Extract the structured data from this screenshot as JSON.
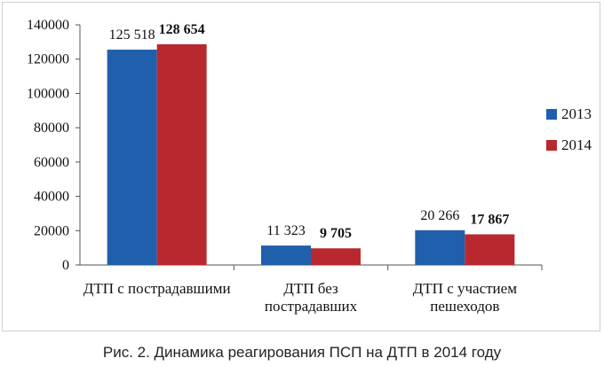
{
  "chart_data": {
    "type": "bar",
    "categories": [
      [
        "ДТП с пострадавшими"
      ],
      [
        "ДТП без",
        "пострадавших"
      ],
      [
        "ДТП с участием",
        "пешеходов"
      ]
    ],
    "series": [
      {
        "name": "2013",
        "color": "#1f5fab",
        "values": [
          125518,
          11323,
          20266
        ],
        "labels": [
          "125 518",
          "11 323",
          "20 266"
        ],
        "bold": false
      },
      {
        "name": "2014",
        "color": "#b8292f",
        "values": [
          128654,
          9705,
          17867
        ],
        "labels": [
          "128 654",
          "9 705",
          "17 867"
        ],
        "bold": true
      }
    ],
    "yticks": [
      "0",
      "20000",
      "40000",
      "60000",
      "80000",
      "100000",
      "120000",
      "140000"
    ],
    "ylim": [
      0,
      140000
    ],
    "legend_position": "right",
    "grid": false
  },
  "caption": "Рис. 2. Динамика реагирования ПСП на ДТП в 2014 году"
}
